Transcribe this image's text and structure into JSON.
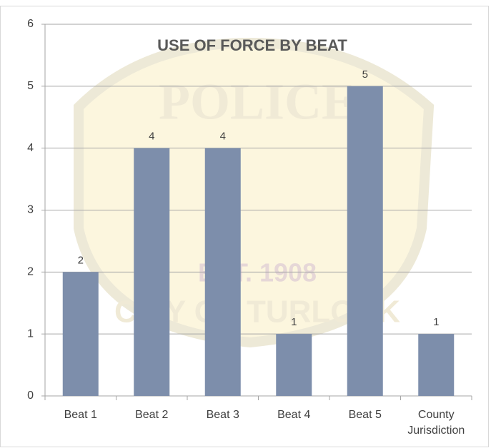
{
  "chart_data": {
    "type": "bar",
    "title": "USE OF FORCE BY BEAT",
    "categories": [
      "Beat 1",
      "Beat 2",
      "Beat 3",
      "Beat 4",
      "Beat 5",
      "County Jurisdiction"
    ],
    "values": [
      2,
      4,
      4,
      1,
      5,
      1
    ],
    "color": "#7d8eab",
    "ylim": [
      0,
      6
    ],
    "yticks": [
      0,
      1,
      2,
      3,
      4,
      5,
      6
    ],
    "grid": true,
    "watermark": {
      "title": "POLICE",
      "est": "EST. 1908",
      "city": "CITY OF TURLOCK"
    }
  }
}
